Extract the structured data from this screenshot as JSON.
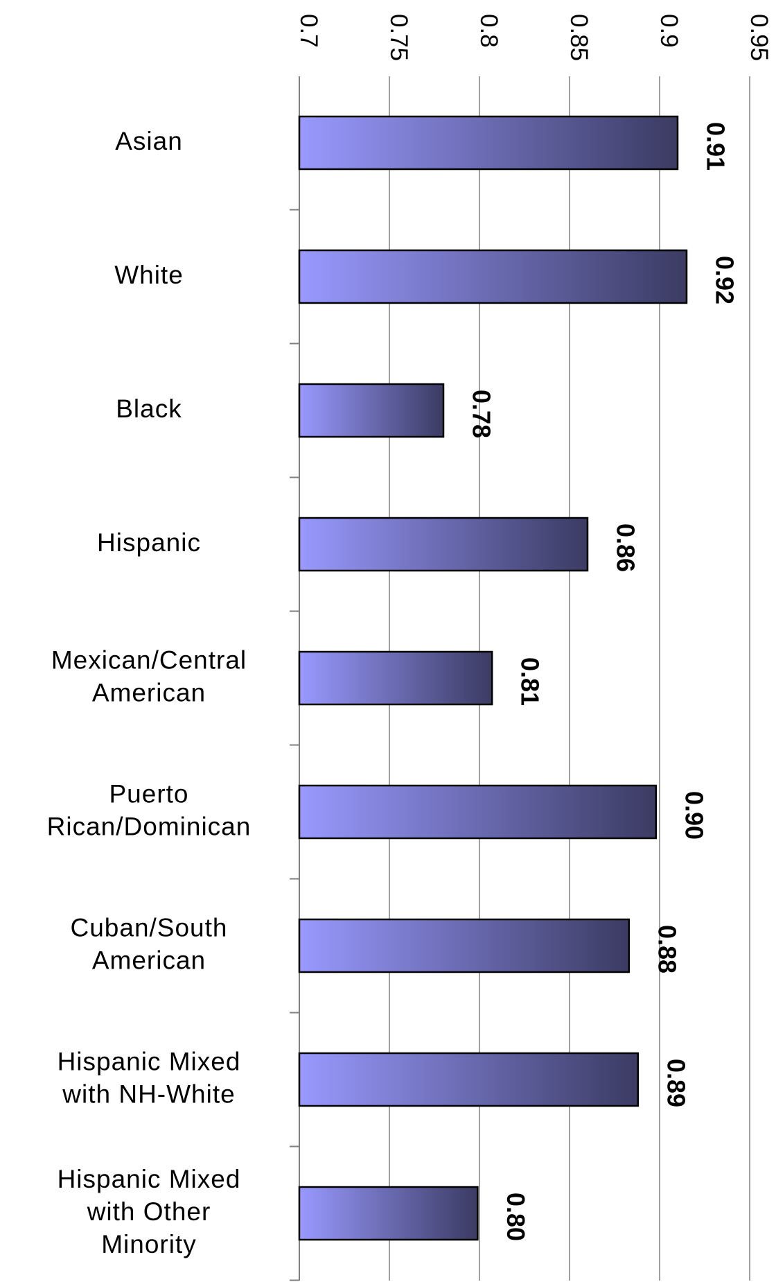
{
  "chart_data": {
    "type": "bar",
    "orientation": "horizontal",
    "categories": [
      "Asian",
      "White",
      "Black",
      "Hispanic",
      "Mexican/Central American",
      "Puerto Rican/Dominican",
      "Cuban/South American",
      "Hispanic Mixed with NH-White",
      "Hispanic Mixed with Other Minority"
    ],
    "category_lines": [
      [
        "Asian"
      ],
      [
        "White"
      ],
      [
        "Black"
      ],
      [
        "Hispanic"
      ],
      [
        "Mexican/Central",
        "American"
      ],
      [
        "Puerto",
        "Rican/Dominican"
      ],
      [
        "Cuban/South",
        "American"
      ],
      [
        "Hispanic Mixed",
        "with NH-White"
      ],
      [
        "Hispanic Mixed",
        "with Other",
        "Minority"
      ]
    ],
    "values": [
      0.91,
      0.915,
      0.78,
      0.86,
      0.807,
      0.898,
      0.883,
      0.888,
      0.799
    ],
    "data_labels": [
      "0.91",
      "0.92",
      "0.78",
      "0.86",
      "0.81",
      "0.90",
      "0.88",
      "0.89",
      "0.80"
    ],
    "xlim": [
      0.7,
      0.95
    ],
    "ticks": [
      0.7,
      0.75,
      0.8,
      0.85,
      0.9,
      0.95
    ],
    "tick_labels": [
      "0.7",
      "0.75",
      "0.8",
      "0.85",
      "0.9",
      "0.95"
    ],
    "tick_label_rotation": "rotated 90 degrees clockwise",
    "data_label_rotation": "rotated 90 degrees clockwise",
    "axis_position": "top",
    "grid": true,
    "legend": "none",
    "title": "",
    "xlabel": "",
    "ylabel": "",
    "colors": {
      "bar_gradient_start": "#9999ff",
      "bar_gradient_end": "#3b3b63",
      "bar_outline": "#000000",
      "gridline": "#808080",
      "text": "#000000"
    }
  }
}
